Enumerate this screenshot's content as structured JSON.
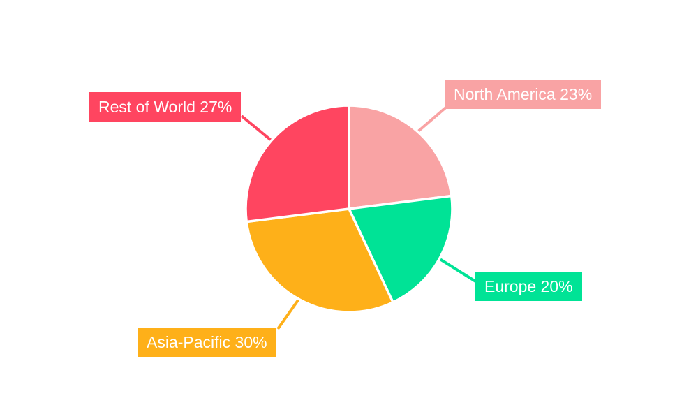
{
  "chart_data": {
    "type": "pie",
    "categories": [
      "North America",
      "Europe",
      "Asia-Pacific",
      "Rest of World"
    ],
    "values": [
      23,
      20,
      30,
      27
    ],
    "unit": "%",
    "background_color": "#ffffff",
    "label_text_color": "#ffffff",
    "slice_gap_color": "#ffffff",
    "start_angle_deg": 0,
    "direction": "clockwise",
    "legend": "none",
    "slices": [
      {
        "label": "North America",
        "value": 23,
        "display": "North America 23%",
        "color": "#F9A3A4"
      },
      {
        "label": "Europe",
        "value": 20,
        "display": "Europe 20%",
        "color": "#00E396"
      },
      {
        "label": "Asia-Pacific",
        "value": 30,
        "display": "Asia-Pacific 30%",
        "color": "#FEB019"
      },
      {
        "label": "Rest of World",
        "value": 27,
        "display": "Rest of World 27%",
        "color": "#FF4560"
      }
    ]
  }
}
